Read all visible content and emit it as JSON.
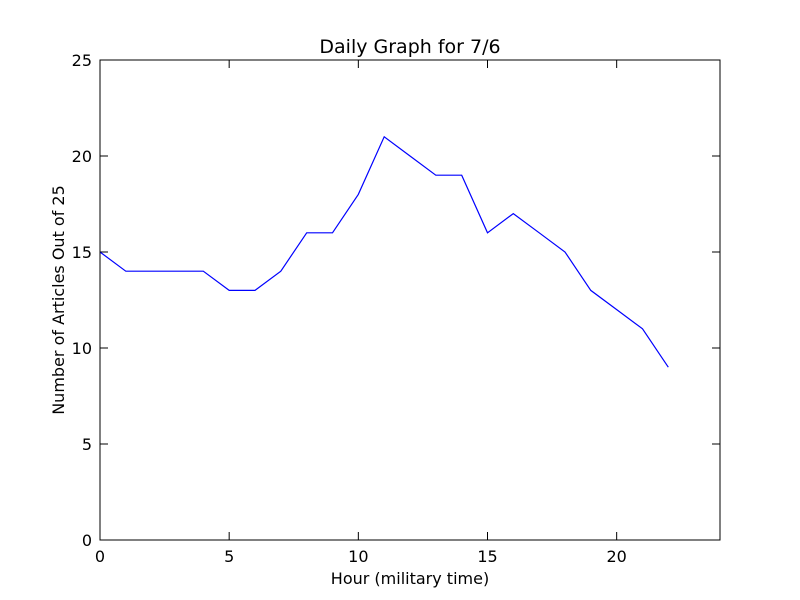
{
  "chart_data": {
    "type": "line",
    "title": "Daily Graph for 7/6",
    "xlabel": "Hour (military time)",
    "ylabel": "Number of Articles Out of 25",
    "xlim": [
      0,
      24
    ],
    "ylim": [
      0,
      25
    ],
    "xticks": [
      0,
      5,
      10,
      15,
      20
    ],
    "yticks": [
      0,
      5,
      10,
      15,
      20,
      25
    ],
    "grid": false,
    "series": [
      {
        "color": "#0000ff",
        "x": [
          0,
          1,
          2,
          3,
          4,
          5,
          6,
          7,
          8,
          9,
          10,
          11,
          12,
          13,
          14,
          15,
          16,
          17,
          18,
          19,
          20,
          21,
          22
        ],
        "y": [
          15,
          14,
          14,
          14,
          14,
          13,
          13,
          14,
          16,
          16,
          18,
          21,
          20,
          19,
          19,
          16,
          17,
          16,
          15,
          13,
          12,
          11,
          9
        ]
      }
    ]
  }
}
